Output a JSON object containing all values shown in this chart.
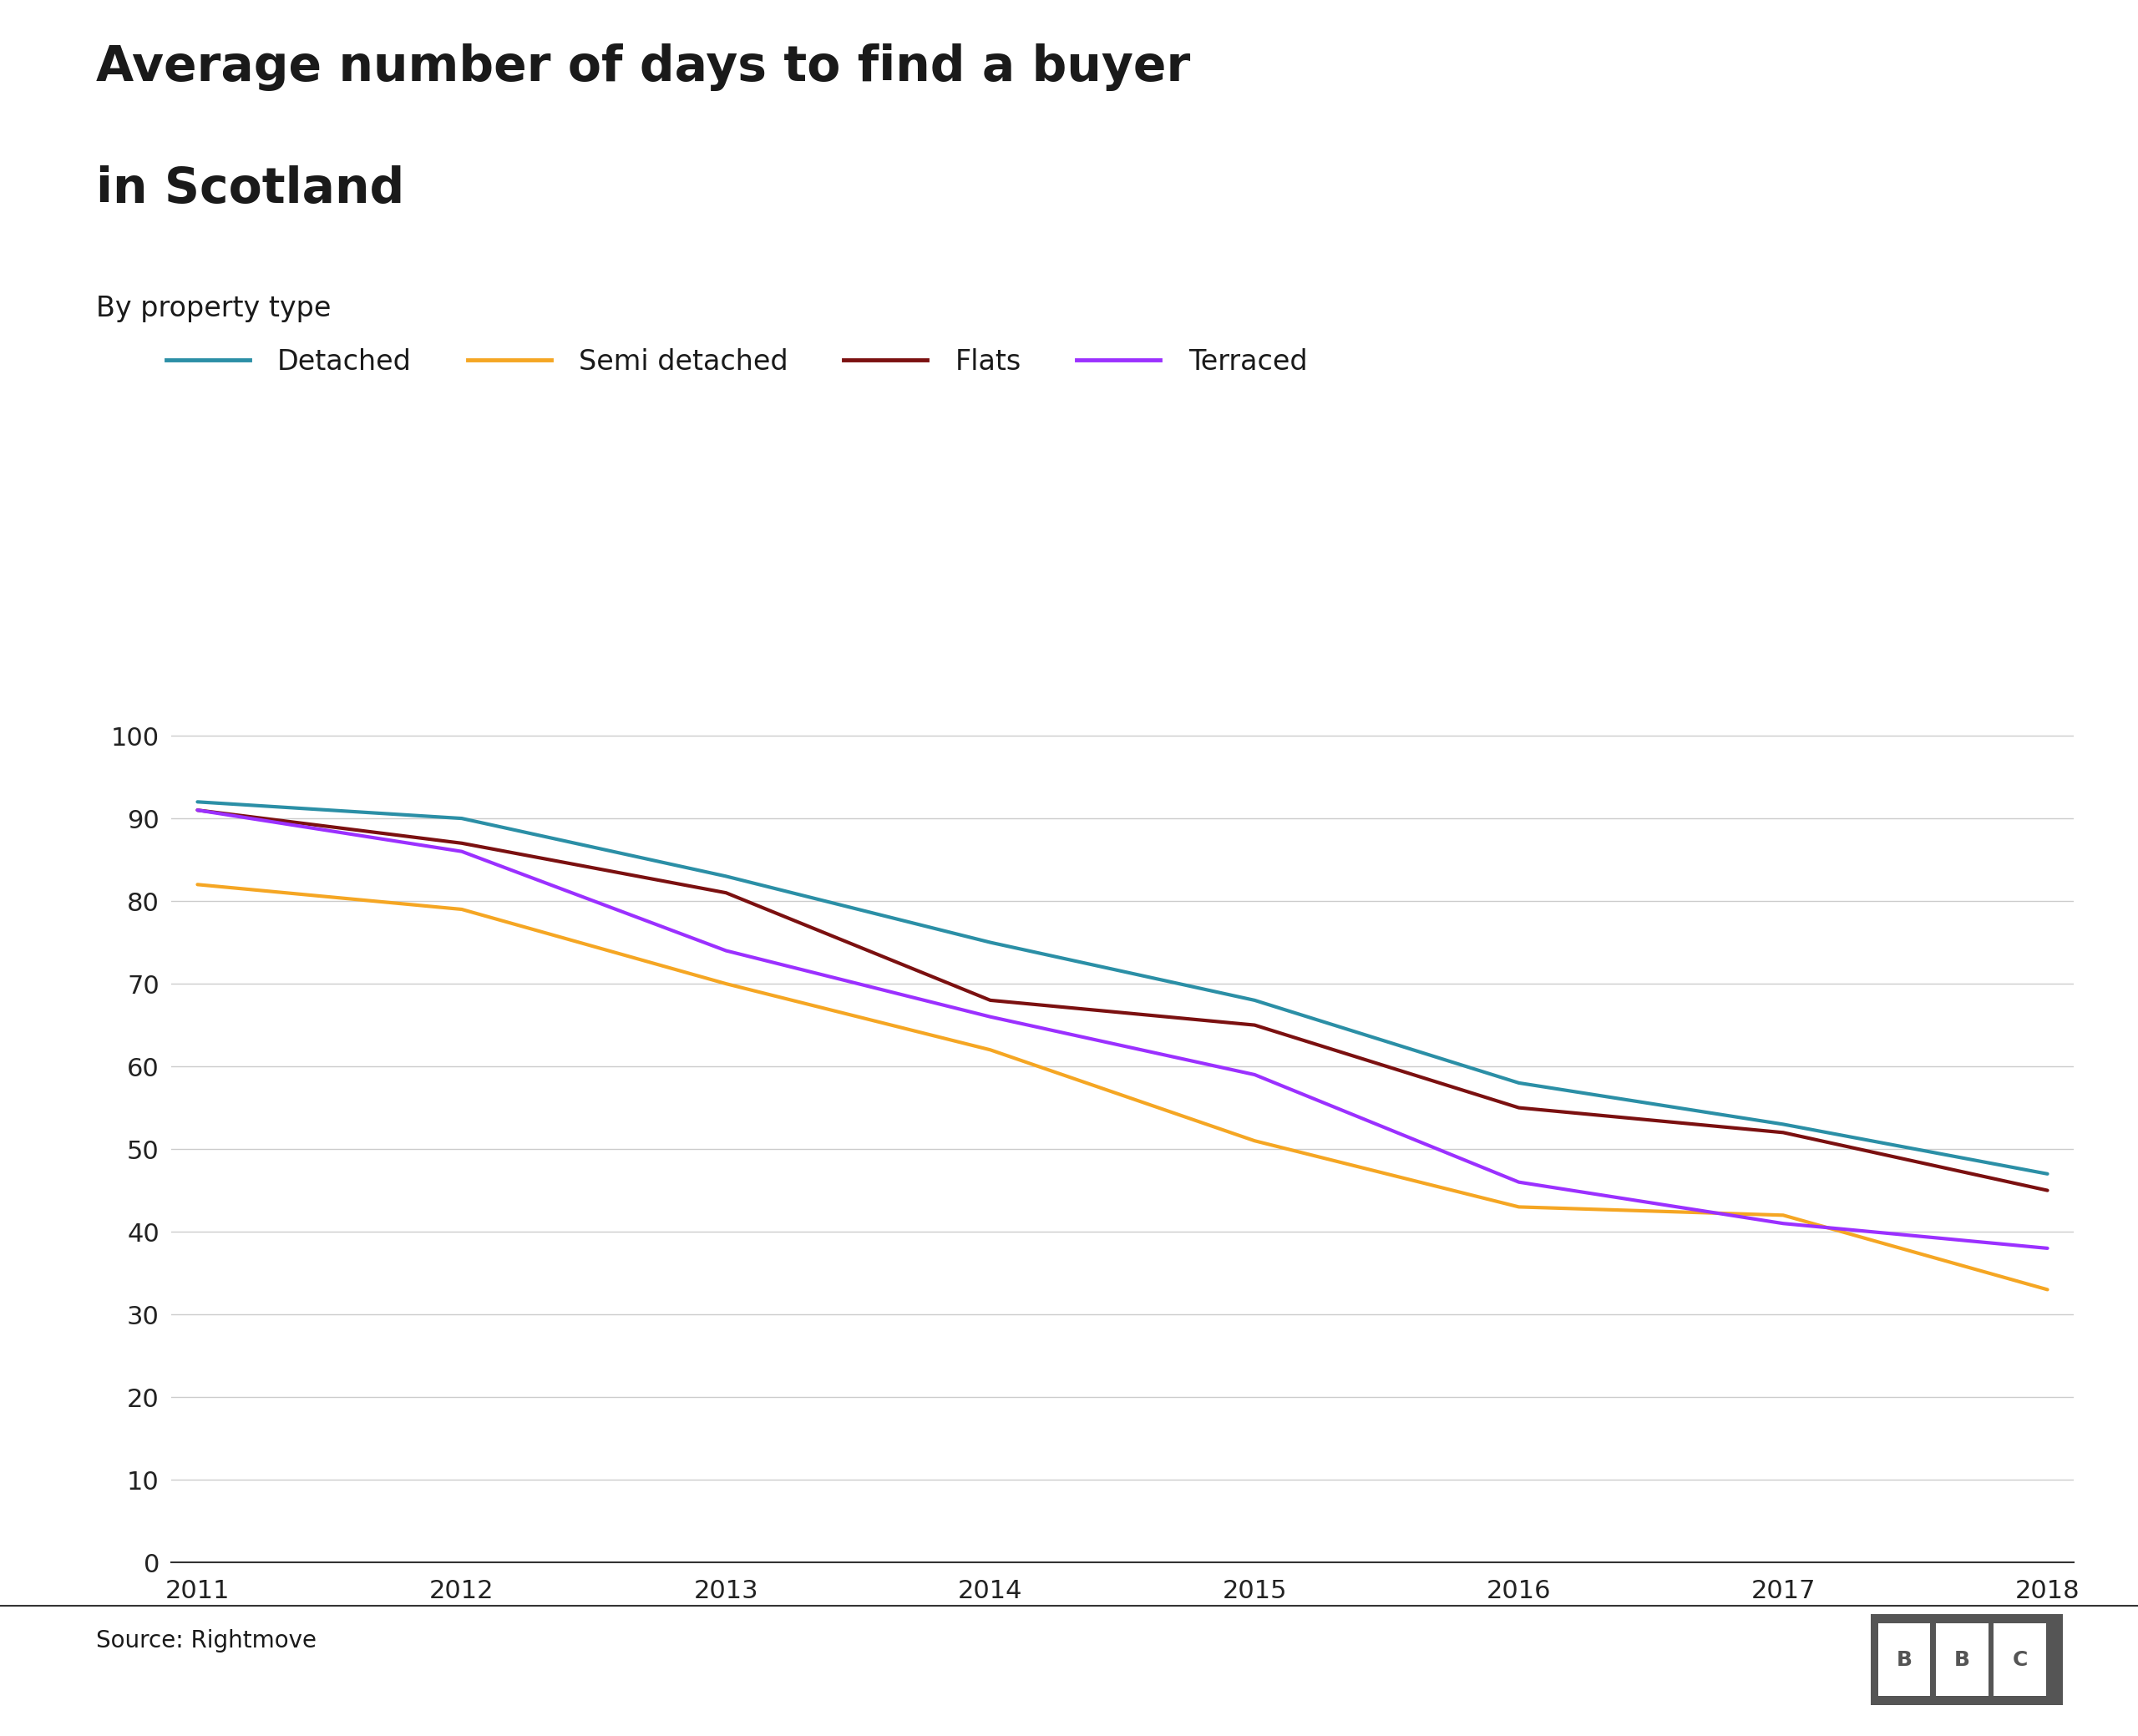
{
  "title_line1": "Average number of days to find a buyer",
  "title_line2": "in Scotland",
  "subtitle": "By property type",
  "source": "Source: Rightmove",
  "years": [
    2011,
    2012,
    2013,
    2014,
    2015,
    2016,
    2017,
    2018
  ],
  "series": {
    "Detached": {
      "values": [
        92,
        90,
        83,
        75,
        68,
        58,
        53,
        47
      ],
      "color": "#2B8FA6"
    },
    "Semi detached": {
      "values": [
        82,
        79,
        70,
        62,
        51,
        43,
        42,
        33
      ],
      "color": "#F5A623"
    },
    "Flats": {
      "values": [
        91,
        87,
        81,
        68,
        65,
        55,
        52,
        45
      ],
      "color": "#7B1010"
    },
    "Terraced": {
      "values": [
        91,
        86,
        74,
        66,
        59,
        46,
        41,
        38
      ],
      "color": "#9B30FF"
    }
  },
  "series_order": [
    "Detached",
    "Semi detached",
    "Flats",
    "Terraced"
  ],
  "ylim": [
    0,
    105
  ],
  "yticks": [
    0,
    10,
    20,
    30,
    40,
    50,
    60,
    70,
    80,
    90,
    100
  ],
  "background_color": "#ffffff",
  "grid_color": "#cccccc",
  "title_fontsize": 42,
  "subtitle_fontsize": 24,
  "legend_fontsize": 24,
  "tick_fontsize": 22,
  "source_fontsize": 20,
  "line_width": 3.0,
  "bbc_bg_color": "#555555"
}
